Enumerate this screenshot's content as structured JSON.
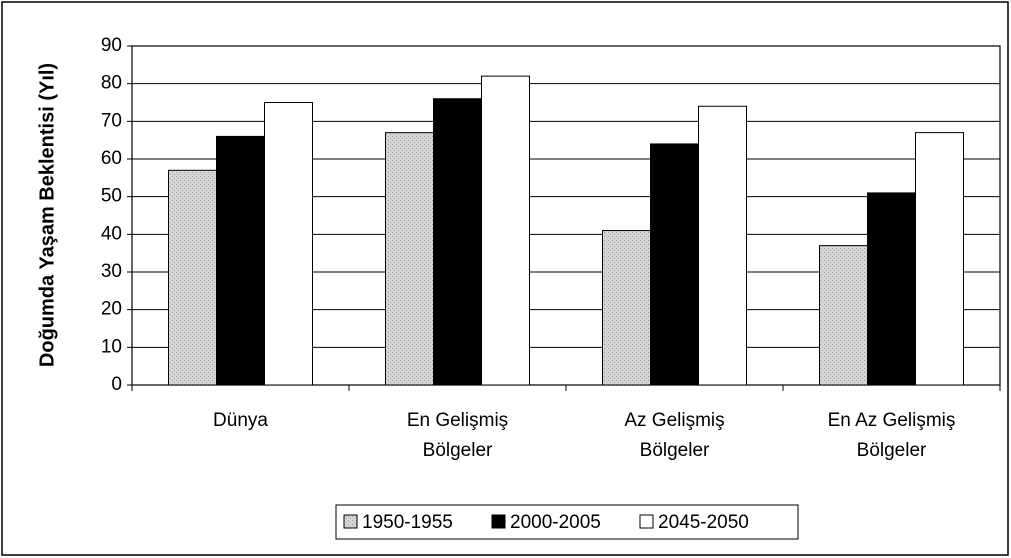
{
  "chart_data": {
    "type": "bar",
    "y_label": "Doğumda Yaşam Beklentisi (Yıl)",
    "categories": [
      "Dünya",
      "En Gelişmiş\nBölgeler",
      "Az Gelişmiş\nBölgeler",
      "En Az Gelişmiş\nBölgeler"
    ],
    "series": [
      {
        "name": "1950-1955",
        "color": "#cfcfcf",
        "values": [
          57,
          67,
          41,
          37
        ]
      },
      {
        "name": "2000-2005",
        "color": "#000000",
        "values": [
          66,
          76,
          64,
          51
        ]
      },
      {
        "name": "2045-2050",
        "color": "#ffffff",
        "values": [
          75,
          82,
          74,
          67
        ]
      }
    ],
    "ylim": [
      0,
      90
    ],
    "yticks": [
      0,
      10,
      20,
      30,
      40,
      50,
      60,
      70,
      80,
      90
    ],
    "grid": true,
    "legend": "bottom"
  }
}
